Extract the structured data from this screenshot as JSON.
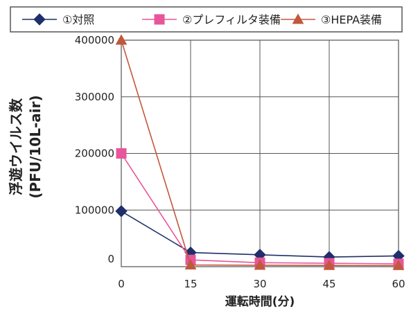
{
  "chart_data": {
    "type": "line",
    "x": [
      0,
      15,
      30,
      45,
      60
    ],
    "xlabel": "運転時間(分)",
    "ylabel": "浮遊ウイルス数",
    "ylabel_unit": "(PFU/10L-air)",
    "xlim": [
      0,
      60
    ],
    "ylim": [
      0,
      400000
    ],
    "x_ticks": [
      "0",
      "15",
      "30",
      "45",
      "60"
    ],
    "y_ticks": [
      "0",
      "100000",
      "200000",
      "300000",
      "400000"
    ],
    "grid": true,
    "legend_position": "top",
    "series": [
      {
        "name": "①対照",
        "color": "#1f2f6b",
        "marker": "diamond",
        "values": [
          98000,
          25000,
          21000,
          17000,
          19000
        ]
      },
      {
        "name": "②プレフィルタ装備",
        "color": "#e8559a",
        "marker": "square",
        "values": [
          200000,
          12000,
          7000,
          6000,
          5000
        ]
      },
      {
        "name": "③HEPA装備",
        "color": "#c0583c",
        "marker": "triangle",
        "values": [
          400000,
          3000,
          2500,
          2200,
          2000
        ]
      }
    ]
  }
}
